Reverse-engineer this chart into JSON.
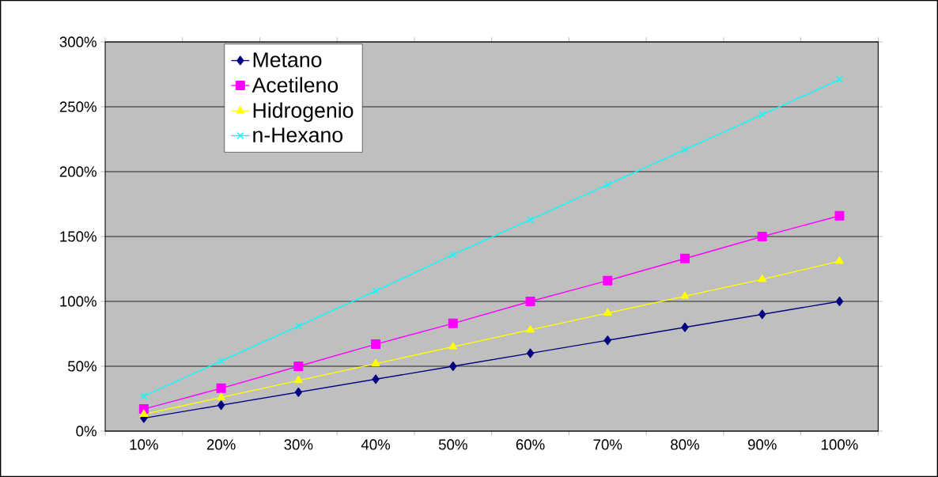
{
  "chart_data": {
    "type": "line",
    "categories": [
      "10%",
      "20%",
      "30%",
      "40%",
      "50%",
      "60%",
      "70%",
      "80%",
      "90%",
      "100%"
    ],
    "series": [
      {
        "name": "Metano",
        "color": "#000080",
        "marker": "diamond",
        "values": [
          10,
          20,
          30,
          40,
          50,
          60,
          70,
          80,
          90,
          100
        ]
      },
      {
        "name": "Acetileno",
        "color": "#ff00ff",
        "marker": "square",
        "values": [
          17,
          33,
          50,
          67,
          83,
          100,
          116,
          133,
          150,
          166
        ]
      },
      {
        "name": "Hidrogenio",
        "color": "#ffff00",
        "marker": "triangle",
        "values": [
          13,
          26,
          39,
          52,
          65,
          78,
          91,
          104,
          117,
          131
        ]
      },
      {
        "name": "n-Hexano",
        "color": "#00ffff",
        "marker": "cross",
        "values": [
          27,
          54,
          81,
          108,
          136,
          163,
          190,
          217,
          244,
          271
        ]
      }
    ],
    "ylim": [
      0,
      300
    ],
    "yticks": [
      {
        "value": 0,
        "label": "0%"
      },
      {
        "value": 50,
        "label": "50%"
      },
      {
        "value": 100,
        "label": "100%"
      },
      {
        "value": 150,
        "label": "150%"
      },
      {
        "value": 200,
        "label": "200%"
      },
      {
        "value": 250,
        "label": "250%"
      },
      {
        "value": 300,
        "label": "300%"
      }
    ],
    "grid": "y",
    "legend": "top left",
    "line_style": "solid"
  }
}
